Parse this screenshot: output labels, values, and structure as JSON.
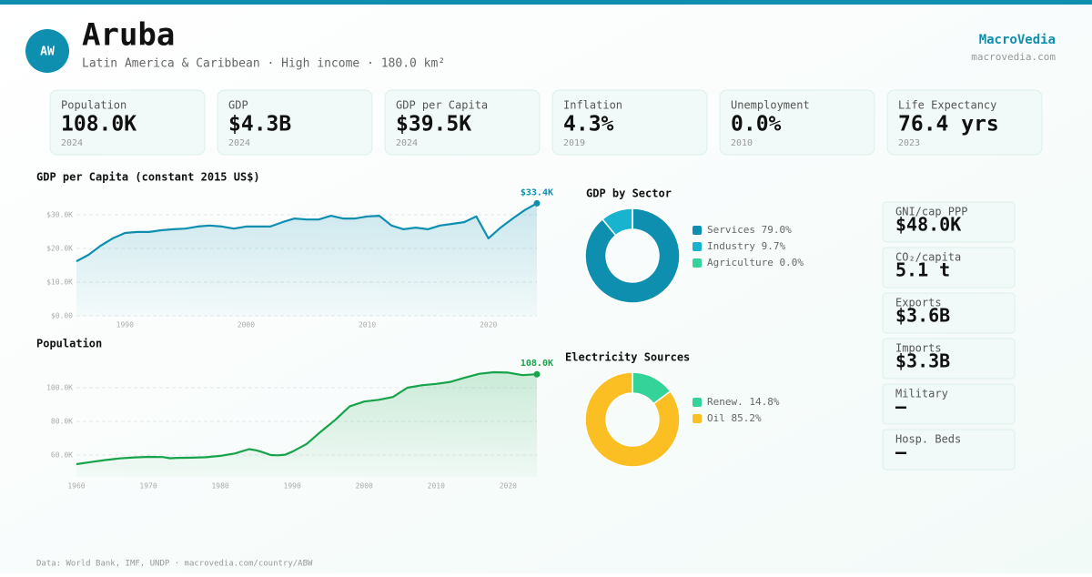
{
  "header": {
    "badge": "AW",
    "title": "Aruba",
    "subtitle": "Latin America & Caribbean · High income · 180.0 km²",
    "brand": "MacroVedia",
    "url": "macrovedia.com"
  },
  "kpis": [
    {
      "label": "Population",
      "value": "108.0K",
      "year": "2024"
    },
    {
      "label": "GDP",
      "value": "$4.3B",
      "year": "2024"
    },
    {
      "label": "GDP per Capita",
      "value": "$39.5K",
      "year": "2024"
    },
    {
      "label": "Inflation",
      "value": "4.3%",
      "year": "2019"
    },
    {
      "label": "Unemployment",
      "value": "0.0%",
      "year": "2010"
    },
    {
      "label": "Life Expectancy",
      "value": "76.4 yrs",
      "year": "2023"
    }
  ],
  "chart_data": [
    {
      "type": "line",
      "title": "GDP per Capita (constant 2015 US$)",
      "color": "#0e8fb0",
      "x": [
        1986,
        1987,
        1988,
        1989,
        1990,
        1991,
        1992,
        1993,
        1994,
        1995,
        1996,
        1997,
        1998,
        1999,
        2000,
        2001,
        2002,
        2003,
        2004,
        2005,
        2006,
        2007,
        2008,
        2009,
        2010,
        2011,
        2012,
        2013,
        2014,
        2015,
        2016,
        2017,
        2018,
        2019,
        2020,
        2021,
        2022,
        2023,
        2024
      ],
      "values": [
        16200,
        18100,
        20800,
        23000,
        24600,
        24900,
        24900,
        25400,
        25700,
        25900,
        26500,
        26800,
        26500,
        25900,
        26500,
        26500,
        26500,
        27800,
        28900,
        28600,
        28600,
        29700,
        28900,
        28900,
        29500,
        29700,
        26800,
        25700,
        26200,
        25700,
        26800,
        27300,
        27800,
        29500,
        23000,
        26200,
        28900,
        31400,
        33400
      ],
      "value_labels": [
        null,
        null,
        null,
        null,
        null,
        null,
        null,
        null,
        null,
        null,
        null,
        null,
        null,
        null,
        null,
        null,
        null,
        null,
        null,
        null,
        null,
        null,
        null,
        null,
        null,
        null,
        null,
        null,
        null,
        null,
        null,
        null,
        null,
        null,
        null,
        null,
        null,
        null,
        "$33.4K"
      ],
      "xlim": [
        1986,
        2024
      ],
      "xticks": [
        1990,
        2000,
        2010,
        2020
      ],
      "ylim": [
        0,
        35000
      ],
      "yticks": [
        {
          "value": 0,
          "label": "$0.00"
        },
        {
          "value": 10000,
          "label": "$10.0K"
        },
        {
          "value": 20000,
          "label": "$20.0K"
        },
        {
          "value": 30000,
          "label": "$30.0K"
        }
      ],
      "grid": true
    },
    {
      "type": "line",
      "title": "Population",
      "color": "#16a34a",
      "x": [
        1960,
        1962,
        1964,
        1966,
        1968,
        1970,
        1972,
        1973,
        1974,
        1976,
        1978,
        1980,
        1982,
        1984,
        1985,
        1986,
        1987,
        1988,
        1989,
        1990,
        1992,
        1994,
        1996,
        1998,
        2000,
        2002,
        2004,
        2006,
        2008,
        2010,
        2012,
        2014,
        2016,
        2018,
        2020,
        2022,
        2024
      ],
      "values": [
        54600,
        55800,
        57000,
        58000,
        58600,
        58900,
        58800,
        58100,
        58300,
        58400,
        58700,
        59500,
        60900,
        63500,
        62800,
        61500,
        60000,
        59800,
        60200,
        62000,
        66600,
        74000,
        81000,
        89000,
        91800,
        92800,
        94500,
        100000,
        101500,
        102300,
        103500,
        106000,
        108300,
        109200,
        109000,
        107500,
        108000
      ],
      "value_labels": [
        null,
        null,
        null,
        null,
        null,
        null,
        null,
        null,
        null,
        null,
        null,
        null,
        null,
        null,
        null,
        null,
        null,
        null,
        null,
        null,
        null,
        null,
        null,
        null,
        null,
        null,
        null,
        null,
        null,
        null,
        null,
        null,
        null,
        null,
        null,
        null,
        "108.0K"
      ],
      "xlim": [
        1960,
        2024
      ],
      "xticks": [
        1960,
        1970,
        1980,
        1990,
        2000,
        2010,
        2020
      ],
      "ylim": [
        47000,
        113000
      ],
      "yticks": [
        {
          "value": 60000,
          "label": "60.0K"
        },
        {
          "value": 80000,
          "label": "80.0K"
        },
        {
          "value": 100000,
          "label": "100.0K"
        }
      ],
      "grid": true
    },
    {
      "type": "donut",
      "title": "GDP by Sector",
      "categories": [
        "Services",
        "Industry",
        "Agriculture"
      ],
      "values": [
        79.0,
        9.7,
        0.0
      ],
      "value_labels": [
        "79.0%",
        "9.7%",
        "0.0%"
      ],
      "colors": [
        "#0e8fb0",
        "#17b3cf",
        "#34d399"
      ]
    },
    {
      "type": "donut",
      "title": "Electricity Sources",
      "categories": [
        "Renew.",
        "Oil"
      ],
      "values": [
        14.8,
        85.2
      ],
      "value_labels": [
        "14.8%",
        "85.2%"
      ],
      "colors": [
        "#34d399",
        "#fbbf24"
      ]
    }
  ],
  "side_stats": [
    {
      "label": "GNI/cap PPP",
      "value": "$48.0K"
    },
    {
      "label": "CO₂/capita",
      "value": "5.1 t"
    },
    {
      "label": "Exports",
      "value": "$3.6B"
    },
    {
      "label": "Imports",
      "value": "$3.3B"
    },
    {
      "label": "Military",
      "value": "—"
    },
    {
      "label": "Hosp. Beds",
      "value": "—"
    }
  ],
  "footer": "Data: World Bank, IMF, UNDP · macrovedia.com/country/ABW"
}
